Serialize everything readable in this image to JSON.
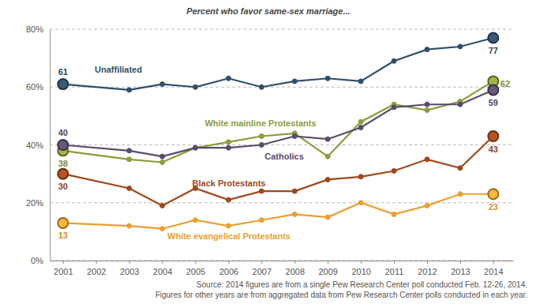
{
  "chart_data": {
    "type": "line",
    "title": "Percent who favor same-sex marriage...",
    "x": [
      2001,
      2003,
      2004,
      2005,
      2006,
      2007,
      2008,
      2009,
      2010,
      2011,
      2012,
      2013,
      2014
    ],
    "xlim": [
      2000.6,
      2014.6
    ],
    "xticks": [
      2001,
      2002,
      2003,
      2004,
      2005,
      2006,
      2007,
      2008,
      2009,
      2010,
      2011,
      2012,
      2013,
      2014
    ],
    "ylim": [
      0,
      80
    ],
    "yticks": [
      {
        "value": 0,
        "label": "0%"
      },
      {
        "value": 20,
        "label": "20%"
      },
      {
        "value": 40,
        "label": "40%"
      },
      {
        "value": 60,
        "label": "60%"
      },
      {
        "value": 80,
        "label": "80%"
      }
    ],
    "grid": true,
    "marker": "circle",
    "series": [
      {
        "name": "Unaffiliated",
        "color": "#2f4f6b",
        "values": [
          61,
          59,
          61,
          60,
          63,
          60,
          62,
          63,
          62,
          69,
          73,
          74,
          77
        ],
        "value_labels": [
          "61",
          null,
          null,
          null,
          null,
          null,
          null,
          null,
          null,
          null,
          null,
          null,
          "77"
        ]
      },
      {
        "name": "White mainline Protestants",
        "color": "#8c9c3c",
        "values": [
          38,
          35,
          34,
          39,
          41,
          43,
          44,
          36,
          48,
          54,
          52,
          55,
          62
        ],
        "value_labels": [
          "38",
          null,
          null,
          null,
          null,
          null,
          null,
          null,
          null,
          null,
          null,
          null,
          "62"
        ]
      },
      {
        "name": "Catholics",
        "color": "#5a4b6b",
        "values": [
          40,
          38,
          36,
          39,
          39,
          40,
          43,
          42,
          46,
          53,
          54,
          54,
          59
        ],
        "value_labels": [
          "40",
          null,
          null,
          null,
          null,
          null,
          null,
          null,
          null,
          null,
          null,
          null,
          "59"
        ]
      },
      {
        "name": "Black Protestants",
        "color": "#a0481c",
        "values": [
          30,
          25,
          19,
          25,
          21,
          24,
          24,
          28,
          29,
          31,
          35,
          32,
          43
        ],
        "value_labels": [
          "30",
          null,
          null,
          null,
          null,
          null,
          null,
          null,
          null,
          null,
          null,
          null,
          "43"
        ]
      },
      {
        "name": "White evangelical Protestants",
        "color": "#e9a030",
        "values": [
          13,
          12,
          11,
          14,
          12,
          14,
          16,
          15,
          20,
          16,
          19,
          23,
          23
        ],
        "value_labels": [
          "13",
          null,
          null,
          null,
          null,
          null,
          null,
          null,
          null,
          null,
          null,
          null,
          "23"
        ]
      }
    ],
    "source": [
      "Source: 2014 figures are from a single Pew Research Center poll conducted Feb. 12-26, 2014.",
      "Figures for other years are from aggregated data from Pew Research Center polls conducted in each year."
    ]
  }
}
